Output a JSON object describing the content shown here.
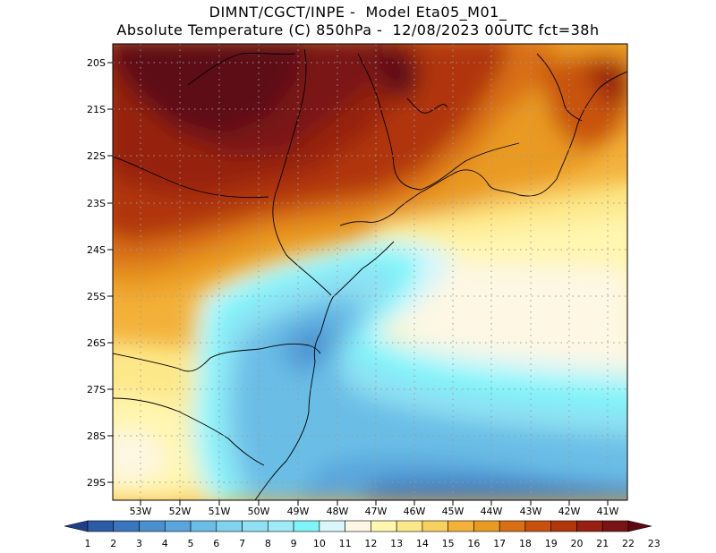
{
  "header": {
    "line1": "DIMNT/CGCT/INPE -  Model Eta05_M01_",
    "line2": "Absolute Temperature (C) 850hPa -  12/08/2023 00UTC fct=38h"
  },
  "map": {
    "lat_labels": [
      "20S",
      "21S",
      "22S",
      "23S",
      "24S",
      "25S",
      "26S",
      "27S",
      "28S",
      "29S"
    ],
    "lon_labels": [
      "53W",
      "52W",
      "51W",
      "50W",
      "49W",
      "48W",
      "47W",
      "46W",
      "45W",
      "44W",
      "43W",
      "42W",
      "41W"
    ]
  },
  "colorbar": {
    "labels": [
      "1",
      "2",
      "3",
      "4",
      "5",
      "6",
      "7",
      "8",
      "9",
      "10",
      "11",
      "12",
      "13",
      "14",
      "15",
      "16",
      "17",
      "18",
      "19",
      "20",
      "21",
      "22",
      "23"
    ],
    "colors": [
      "#1f3f8a",
      "#2b5ca6",
      "#3a76bd",
      "#4a8fcf",
      "#5aa6dc",
      "#6abee6",
      "#7fd3ee",
      "#8ee0f2",
      "#9eeaf6",
      "#7ff5fa",
      "#d9f6fb",
      "#fdf7e3",
      "#fff6b0",
      "#fde889",
      "#f8d060",
      "#f3b13a",
      "#e99a22",
      "#d96f14",
      "#c8520d",
      "#b0360b",
      "#962011",
      "#7a1414",
      "#5d0712"
    ]
  }
}
